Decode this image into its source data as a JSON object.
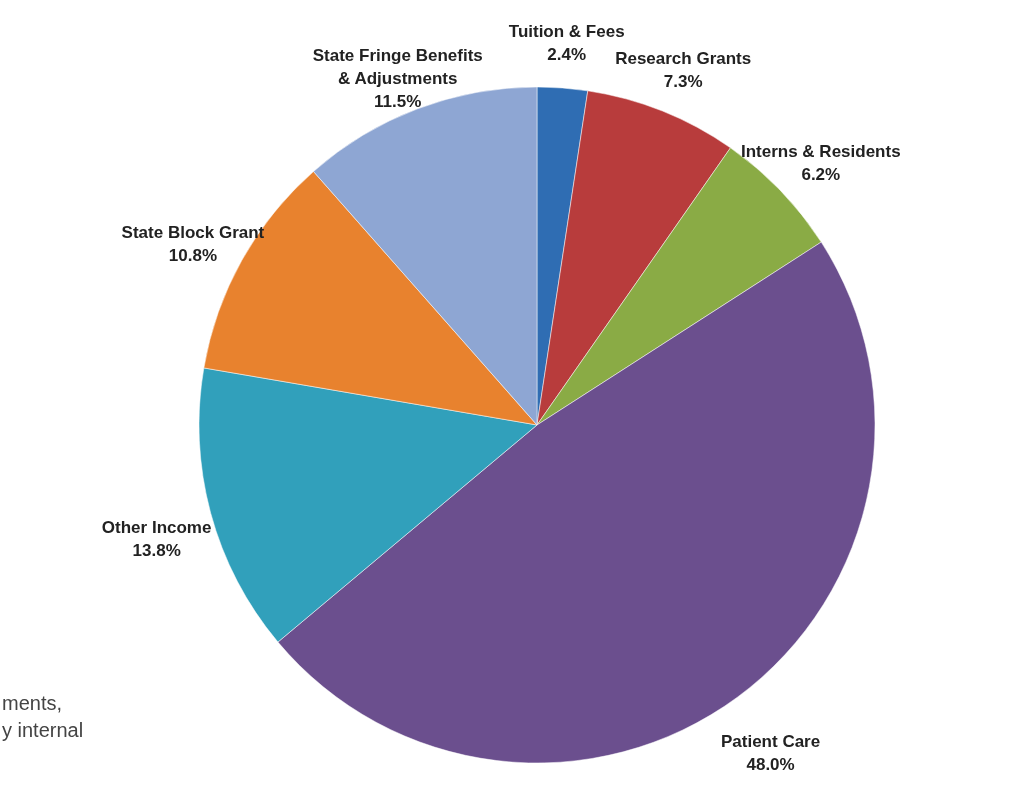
{
  "chart_data": {
    "type": "pie",
    "categories": [
      "Tuition & Fees",
      "Research Grants",
      "Interns & Residents",
      "Patient Care",
      "Other Income",
      "State Block Grant",
      "State Fringe Benefits & Adjustments"
    ],
    "values": [
      2.4,
      7.3,
      6.2,
      48.0,
      13.8,
      10.8,
      11.5
    ],
    "colors": [
      "#2f6db3",
      "#b83c3c",
      "#8aab45",
      "#6b4f8e",
      "#31a0bb",
      "#e8822e",
      "#8ea6d3"
    ],
    "value_labels": [
      "2.4%",
      "7.3%",
      "6.2%",
      "48.0%",
      "13.8%",
      "10.8%",
      "11.5%"
    ],
    "annotations": [
      "ments,",
      "y internal"
    ]
  }
}
